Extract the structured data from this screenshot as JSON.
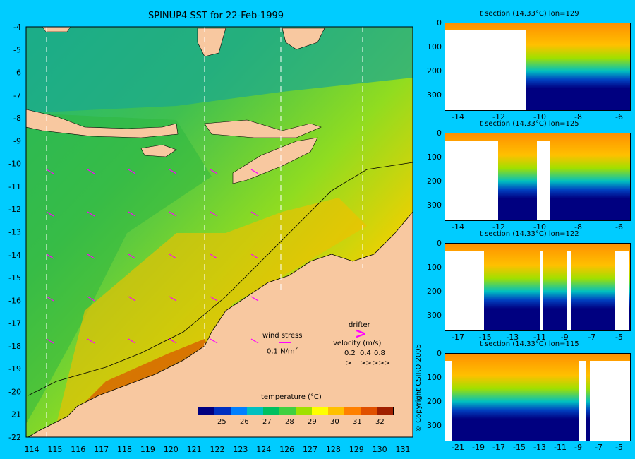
{
  "main_map": {
    "title": "SPINUP4 SST for 22-Feb-1999",
    "lat_ticks": [
      "-4",
      "-5",
      "-6",
      "-7",
      "-8",
      "-9",
      "-10",
      "-11",
      "-12",
      "-13",
      "-14",
      "-15",
      "-16",
      "-17",
      "-18",
      "-19",
      "-20",
      "-21",
      "-22"
    ],
    "lon_ticks": [
      "114",
      "115",
      "116",
      "117",
      "118",
      "119",
      "120",
      "121",
      "122",
      "123",
      "124",
      "126",
      "127",
      "128",
      "129",
      "130",
      "131"
    ],
    "land_color": "#f8c8a0",
    "arrow_color": "#ff00ff"
  },
  "legend": {
    "wind_stress_label": "wind stress",
    "wind_stress_value": "0.1 N/m",
    "wind_stress_unit_sup": "2",
    "drifter_label": "drifter",
    "velocity_label": "velocity (m/s)",
    "velocity_values": [
      "0.2",
      "0.4",
      "0.8"
    ],
    "velocity_arrows": [
      ">",
      ">>",
      ">>>"
    ]
  },
  "colorbar": {
    "title": "temperature (°C)",
    "ticks": [
      "25",
      "26",
      "27",
      "28",
      "29",
      "30",
      "31",
      "32"
    ],
    "colors": [
      "#000080",
      "#0030c0",
      "#0080ff",
      "#00c0c0",
      "#00c060",
      "#40d040",
      "#a0e000",
      "#ffff00",
      "#ffc000",
      "#ff8000",
      "#e05000",
      "#a02000"
    ]
  },
  "copyright": "© Copyright CSIRO 2005",
  "sections": [
    {
      "title": "t section (14.33°C) lon=129",
      "depth_ticks": [
        "0",
        "100",
        "200",
        "300"
      ],
      "x_ticks": [
        "-14",
        "-12",
        "-10",
        "-8",
        "-6"
      ]
    },
    {
      "title": "t section (14.33°C) lon=125",
      "depth_ticks": [
        "0",
        "100",
        "200",
        "300"
      ],
      "x_ticks": [
        "-14",
        "-12",
        "-10",
        "-8",
        "-6"
      ]
    },
    {
      "title": "t section (14.33°C) lon=122",
      "depth_ticks": [
        "0",
        "100",
        "200",
        "300"
      ],
      "x_ticks": [
        "-17",
        "-15",
        "-13",
        "-11",
        "-9",
        "-7",
        "-5"
      ]
    },
    {
      "title": "t section (14.33°C) lon=115",
      "depth_ticks": [
        "0",
        "100",
        "200",
        "300"
      ],
      "x_ticks": [
        "-21",
        "-19",
        "-17",
        "-15",
        "-13",
        "-11",
        "-9",
        "-7",
        "-5"
      ]
    }
  ]
}
